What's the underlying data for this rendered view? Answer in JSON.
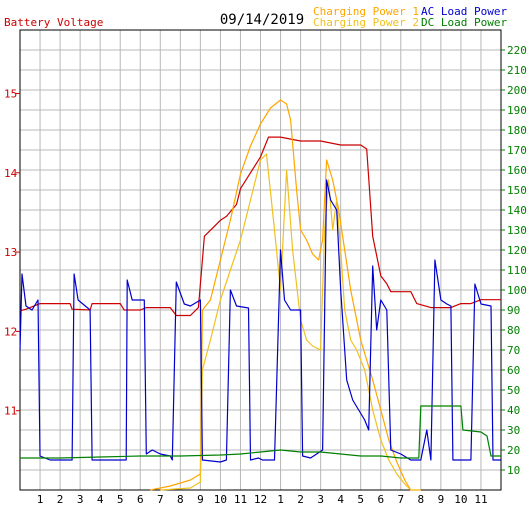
{
  "chart_data": {
    "type": "line",
    "title": "09/14/2019",
    "left_axis_label": "Battery Voltage",
    "left_axis": {
      "ylim": [
        10.0,
        15.8
      ],
      "ticks": [
        "11",
        "12",
        "13",
        "14",
        "15"
      ]
    },
    "right_axis": {
      "ylim": [
        0,
        230
      ],
      "ticks": [
        "10",
        "20",
        "30",
        "40",
        "50",
        "60",
        "70",
        "80",
        "90",
        "100",
        "110",
        "120",
        "130",
        "140",
        "150",
        "160",
        "170",
        "180",
        "190",
        "200",
        "210",
        "220"
      ]
    },
    "x_axis": {
      "range": [
        0,
        24
      ],
      "tick_labels": [
        "1",
        "2",
        "3",
        "4",
        "5",
        "6",
        "7",
        "8",
        "9",
        "10",
        "11",
        "12",
        "1",
        "2",
        "3",
        "4",
        "5",
        "6",
        "7",
        "8",
        "9",
        "10",
        "11"
      ]
    },
    "grid": true,
    "legend": [
      {
        "label": "Charging Power 1",
        "color": "#ffa500"
      },
      {
        "label": "Charging Power 2",
        "color": "#f0c020"
      },
      {
        "label": "AC Load Power",
        "color": "#0000cc"
      },
      {
        "label": "DC Load Power",
        "color": "#008000"
      }
    ],
    "series": [
      {
        "name": "Battery Voltage",
        "axis": "left",
        "color": "#cc0000",
        "points": [
          [
            0,
            12.26
          ],
          [
            0.3,
            12.28
          ],
          [
            1,
            12.35
          ],
          [
            2,
            12.35
          ],
          [
            2.5,
            12.35
          ],
          [
            2.6,
            12.28
          ],
          [
            3.5,
            12.27
          ],
          [
            3.6,
            12.35
          ],
          [
            5,
            12.35
          ],
          [
            5.2,
            12.27
          ],
          [
            6,
            12.27
          ],
          [
            6.3,
            12.3
          ],
          [
            7.5,
            12.3
          ],
          [
            7.8,
            12.2
          ],
          [
            8.5,
            12.2
          ],
          [
            8.9,
            12.3
          ],
          [
            9.2,
            13.2
          ],
          [
            9.6,
            13.3
          ],
          [
            10,
            13.4
          ],
          [
            10.3,
            13.45
          ],
          [
            10.8,
            13.6
          ],
          [
            11,
            13.8
          ],
          [
            11.5,
            14.0
          ],
          [
            12,
            14.2
          ],
          [
            12.4,
            14.45
          ],
          [
            13,
            14.45
          ],
          [
            14,
            14.4
          ],
          [
            15,
            14.4
          ],
          [
            16,
            14.35
          ],
          [
            16.5,
            14.35
          ],
          [
            17,
            14.35
          ],
          [
            17.3,
            14.3
          ],
          [
            17.6,
            13.2
          ],
          [
            18,
            12.7
          ],
          [
            18.3,
            12.6
          ],
          [
            18.5,
            12.5
          ],
          [
            19,
            12.5
          ],
          [
            19.5,
            12.5
          ],
          [
            19.8,
            12.35
          ],
          [
            20.5,
            12.3
          ],
          [
            21,
            12.3
          ],
          [
            21.5,
            12.3
          ],
          [
            22,
            12.35
          ],
          [
            22.5,
            12.35
          ],
          [
            23,
            12.4
          ],
          [
            24,
            12.4
          ]
        ]
      },
      {
        "name": "Charging Power 1",
        "axis": "right",
        "color": "#ffa500",
        "points": [
          [
            6.5,
            0
          ],
          [
            7.5,
            2
          ],
          [
            8.5,
            5
          ],
          [
            9,
            8
          ],
          [
            9.1,
            90
          ],
          [
            9.5,
            95
          ],
          [
            10,
            115
          ],
          [
            10.5,
            135
          ],
          [
            11,
            158
          ],
          [
            11.5,
            172
          ],
          [
            12,
            183
          ],
          [
            12.5,
            191
          ],
          [
            13,
            195
          ],
          [
            13.3,
            193
          ],
          [
            13.5,
            185
          ],
          [
            13.8,
            150
          ],
          [
            14,
            130
          ],
          [
            14.3,
            125
          ],
          [
            14.6,
            118
          ],
          [
            14.9,
            115
          ],
          [
            15.1,
            125
          ],
          [
            15.3,
            165
          ],
          [
            15.6,
            155
          ],
          [
            15.9,
            140
          ],
          [
            16.2,
            120
          ],
          [
            16.5,
            100
          ],
          [
            16.8,
            85
          ],
          [
            17,
            75
          ],
          [
            17.3,
            65
          ],
          [
            17.6,
            55
          ],
          [
            18,
            40
          ],
          [
            18.4,
            25
          ],
          [
            18.8,
            14
          ],
          [
            19.2,
            5
          ],
          [
            19.5,
            0
          ],
          [
            20,
            0
          ]
        ]
      },
      {
        "name": "Charging Power 2",
        "axis": "right",
        "color": "#f0c020",
        "points": [
          [
            7,
            0
          ],
          [
            8.5,
            1
          ],
          [
            9,
            4
          ],
          [
            9.1,
            60
          ],
          [
            9.5,
            75
          ],
          [
            10,
            95
          ],
          [
            10.5,
            110
          ],
          [
            11,
            125
          ],
          [
            11.5,
            145
          ],
          [
            12,
            165
          ],
          [
            12.3,
            168
          ],
          [
            12.7,
            130
          ],
          [
            13,
            100
          ],
          [
            13.3,
            160
          ],
          [
            13.6,
            120
          ],
          [
            14,
            85
          ],
          [
            14.3,
            75
          ],
          [
            14.6,
            72
          ],
          [
            15,
            70
          ],
          [
            15.2,
            130
          ],
          [
            15.4,
            155
          ],
          [
            15.6,
            130
          ],
          [
            15.8,
            145
          ],
          [
            16,
            120
          ],
          [
            16.2,
            90
          ],
          [
            16.5,
            75
          ],
          [
            16.8,
            70
          ],
          [
            17.2,
            60
          ],
          [
            17.6,
            40
          ],
          [
            18,
            25
          ],
          [
            18.4,
            15
          ],
          [
            18.8,
            8
          ],
          [
            19.2,
            3
          ],
          [
            19.5,
            0
          ],
          [
            20,
            0
          ]
        ]
      },
      {
        "name": "AC Load Power",
        "axis": "right",
        "color": "#0000cc",
        "points": [
          [
            0,
            70
          ],
          [
            0.1,
            108
          ],
          [
            0.3,
            92
          ],
          [
            0.6,
            90
          ],
          [
            0.9,
            95
          ],
          [
            1,
            17
          ],
          [
            1.5,
            15
          ],
          [
            2,
            15
          ],
          [
            2.6,
            15
          ],
          [
            2.7,
            108
          ],
          [
            2.9,
            95
          ],
          [
            3.5,
            90
          ],
          [
            3.6,
            15
          ],
          [
            4,
            15
          ],
          [
            5,
            15
          ],
          [
            5.3,
            15
          ],
          [
            5.35,
            105
          ],
          [
            5.6,
            95
          ],
          [
            6.2,
            95
          ],
          [
            6.3,
            18
          ],
          [
            6.6,
            20
          ],
          [
            7,
            18
          ],
          [
            7.5,
            17
          ],
          [
            7.6,
            15
          ],
          [
            7.8,
            104
          ],
          [
            8.2,
            93
          ],
          [
            8.5,
            92
          ],
          [
            9,
            95
          ],
          [
            9.1,
            15
          ],
          [
            10,
            14
          ],
          [
            10.3,
            15
          ],
          [
            10.5,
            100
          ],
          [
            10.8,
            92
          ],
          [
            11.4,
            91
          ],
          [
            11.5,
            15
          ],
          [
            11.9,
            16
          ],
          [
            12.1,
            15
          ],
          [
            12.7,
            15
          ],
          [
            13,
            120
          ],
          [
            13.2,
            95
          ],
          [
            13.5,
            90
          ],
          [
            14,
            90
          ],
          [
            14.1,
            17
          ],
          [
            14.5,
            16
          ],
          [
            14.8,
            18
          ],
          [
            15.1,
            20
          ],
          [
            15.3,
            155
          ],
          [
            15.5,
            145
          ],
          [
            15.8,
            140
          ],
          [
            16,
            100
          ],
          [
            16.3,
            55
          ],
          [
            16.6,
            45
          ],
          [
            16.9,
            40
          ],
          [
            17.2,
            35
          ],
          [
            17.4,
            30
          ],
          [
            17.6,
            112
          ],
          [
            17.8,
            80
          ],
          [
            18,
            95
          ],
          [
            18.3,
            90
          ],
          [
            18.5,
            20
          ],
          [
            19,
            18
          ],
          [
            19.5,
            15
          ],
          [
            20,
            15
          ],
          [
            20.3,
            30
          ],
          [
            20.5,
            15
          ],
          [
            20.7,
            115
          ],
          [
            21,
            95
          ],
          [
            21.3,
            93
          ],
          [
            21.5,
            92
          ],
          [
            21.6,
            15
          ],
          [
            22.5,
            15
          ],
          [
            22.7,
            103
          ],
          [
            23,
            93
          ],
          [
            23.5,
            92
          ],
          [
            23.6,
            15
          ],
          [
            24,
            15
          ]
        ]
      },
      {
        "name": "DC Load Power",
        "axis": "right",
        "color": "#008000",
        "points": [
          [
            0,
            16
          ],
          [
            2,
            16
          ],
          [
            4,
            16.5
          ],
          [
            6,
            17
          ],
          [
            8,
            17
          ],
          [
            10,
            17.5
          ],
          [
            11,
            18
          ],
          [
            12,
            19
          ],
          [
            13,
            20
          ],
          [
            14,
            19
          ],
          [
            15,
            19
          ],
          [
            16,
            18
          ],
          [
            17,
            17
          ],
          [
            18,
            17
          ],
          [
            19,
            16
          ],
          [
            19.9,
            16
          ],
          [
            20,
            42
          ],
          [
            21,
            42
          ],
          [
            22,
            42
          ],
          [
            22.1,
            30
          ],
          [
            23,
            29
          ],
          [
            23.3,
            27
          ],
          [
            23.5,
            17
          ],
          [
            24,
            17
          ]
        ]
      }
    ]
  }
}
